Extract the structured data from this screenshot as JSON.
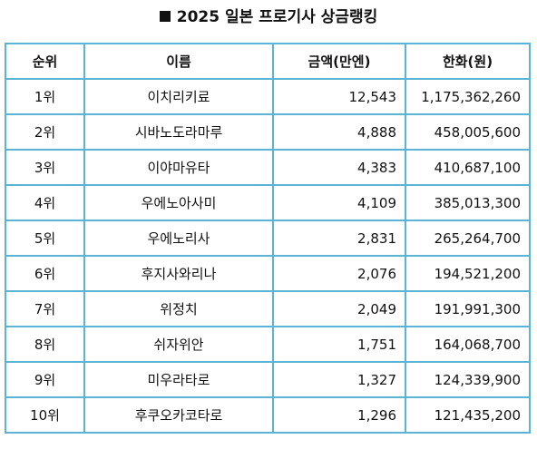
{
  "title": "2025 일본 프로기사 상금랭킹",
  "colors": {
    "border": "#59b4d6",
    "text": "#111111"
  },
  "table": {
    "headers": {
      "rank": "순위",
      "name": "이름",
      "amount": "금액(만엔)",
      "won": "한화(원)"
    },
    "rows": [
      {
        "rank": "1위",
        "name": "이치리키료",
        "amount": "12,543",
        "won": "1,175,362,260"
      },
      {
        "rank": "2위",
        "name": "시바노도라마루",
        "amount": "4,888",
        "won": "458,005,600"
      },
      {
        "rank": "3위",
        "name": "이야마유타",
        "amount": "4,383",
        "won": "410,687,100"
      },
      {
        "rank": "4위",
        "name": "우에노아사미",
        "amount": "4,109",
        "won": "385,013,300"
      },
      {
        "rank": "5위",
        "name": "우에노리사",
        "amount": "2,831",
        "won": "265,264,700"
      },
      {
        "rank": "6위",
        "name": "후지사와리나",
        "amount": "2,076",
        "won": "194,521,200"
      },
      {
        "rank": "7위",
        "name": "위정치",
        "amount": "2,049",
        "won": "191,991,300"
      },
      {
        "rank": "8위",
        "name": "쉬자위안",
        "amount": "1,751",
        "won": "164,068,700"
      },
      {
        "rank": "9위",
        "name": "미우라타로",
        "amount": "1,327",
        "won": "124,339,900"
      },
      {
        "rank": "10위",
        "name": "후쿠오카코타로",
        "amount": "1,296",
        "won": "121,435,200"
      }
    ]
  }
}
